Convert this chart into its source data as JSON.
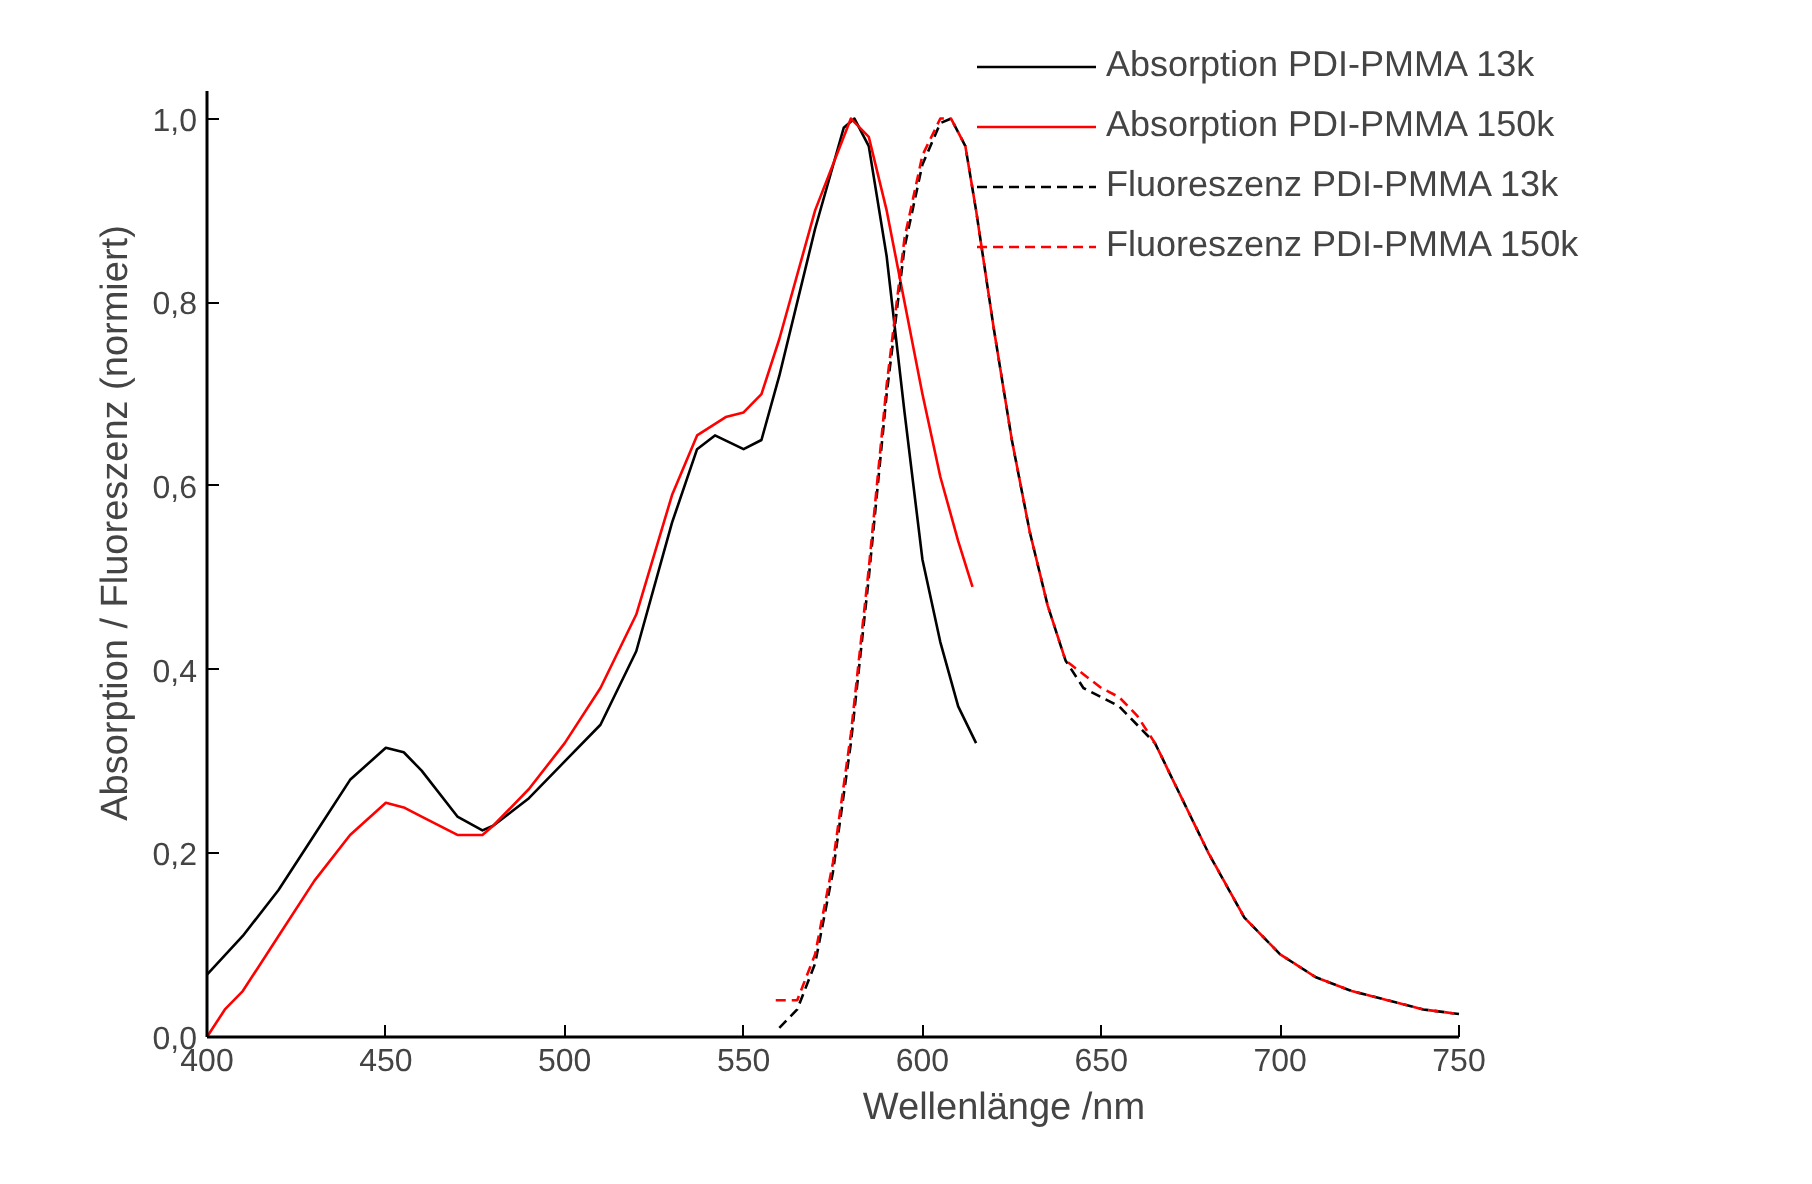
{
  "chart_data": {
    "type": "line",
    "xlabel": "Wellenlänge /nm",
    "ylabel": "Absorption / Fluoreszenz (normiert)",
    "xlim": [
      400,
      750
    ],
    "xticks": [
      400,
      450,
      500,
      550,
      600,
      650,
      700,
      750
    ],
    "ylim": [
      0,
      1.03
    ],
    "yticks": [
      {
        "value": 0,
        "label": "0,0"
      },
      {
        "value": 0.2,
        "label": "0,2"
      },
      {
        "value": 0.4,
        "label": "0,4"
      },
      {
        "value": 0.6,
        "label": "0,6"
      },
      {
        "value": 0.8,
        "label": "0,8"
      },
      {
        "value": 1.0,
        "label": "1,0"
      }
    ],
    "grid": false,
    "legend": "top right",
    "series": [
      {
        "name": "Absorption PDI-PMMA 13k",
        "color": "#000000",
        "line_style": "solid",
        "x": [
          400,
          410,
          420,
          430,
          440,
          450,
          455,
          460,
          470,
          477,
          480,
          490,
          500,
          510,
          520,
          530,
          537,
          542,
          550,
          555,
          560,
          570,
          578,
          581,
          585,
          590,
          595,
          600,
          605,
          610,
          615
        ],
        "values": [
          0.068,
          0.11,
          0.16,
          0.22,
          0.28,
          0.315,
          0.31,
          0.29,
          0.24,
          0.225,
          0.23,
          0.26,
          0.3,
          0.34,
          0.42,
          0.56,
          0.64,
          0.655,
          0.64,
          0.65,
          0.72,
          0.88,
          0.99,
          1.0,
          0.97,
          0.85,
          0.68,
          0.52,
          0.43,
          0.36,
          0.32
        ]
      },
      {
        "name": "Absorption PDI-PMMA 150k",
        "color": "#ff0000",
        "line_style": "solid",
        "x": [
          400,
          405,
          410,
          420,
          430,
          440,
          450,
          455,
          460,
          470,
          477,
          480,
          490,
          500,
          510,
          520,
          530,
          537,
          545,
          550,
          555,
          560,
          570,
          580,
          585,
          590,
          595,
          600,
          605,
          610,
          614
        ],
        "values": [
          0.0,
          0.03,
          0.05,
          0.11,
          0.17,
          0.22,
          0.255,
          0.25,
          0.24,
          0.22,
          0.22,
          0.23,
          0.27,
          0.32,
          0.38,
          0.46,
          0.59,
          0.655,
          0.675,
          0.68,
          0.7,
          0.76,
          0.9,
          1.0,
          0.98,
          0.9,
          0.8,
          0.7,
          0.61,
          0.54,
          0.49
        ]
      },
      {
        "name": "Fluoreszenz PDI-PMMA 13k",
        "color": "#000000",
        "line_style": "dashed",
        "x": [
          560,
          565,
          570,
          575,
          580,
          585,
          590,
          595,
          600,
          605,
          608,
          612,
          615,
          620,
          625,
          630,
          635,
          640,
          645,
          650,
          655,
          660,
          665,
          670,
          680,
          690,
          700,
          710,
          720,
          730,
          740,
          750
        ],
        "values": [
          0.01,
          0.03,
          0.08,
          0.18,
          0.32,
          0.5,
          0.7,
          0.86,
          0.95,
          0.995,
          1.0,
          0.97,
          0.9,
          0.77,
          0.65,
          0.55,
          0.47,
          0.41,
          0.38,
          0.37,
          0.36,
          0.34,
          0.32,
          0.28,
          0.2,
          0.13,
          0.09,
          0.065,
          0.05,
          0.04,
          0.03,
          0.025
        ]
      },
      {
        "name": "Fluoreszenz PDI-PMMA 150k",
        "color": "#ff0000",
        "line_style": "dashed",
        "x": [
          559,
          565,
          570,
          575,
          580,
          585,
          590,
          595,
          600,
          605,
          608,
          612,
          615,
          620,
          625,
          630,
          635,
          640,
          645,
          650,
          655,
          660,
          665,
          670,
          680,
          690,
          700,
          710,
          720,
          730,
          740,
          750
        ],
        "values": [
          0.04,
          0.04,
          0.09,
          0.19,
          0.33,
          0.51,
          0.71,
          0.87,
          0.96,
          1.0,
          1.0,
          0.97,
          0.9,
          0.77,
          0.65,
          0.55,
          0.47,
          0.41,
          0.395,
          0.38,
          0.37,
          0.35,
          0.32,
          0.28,
          0.2,
          0.13,
          0.09,
          0.065,
          0.05,
          0.04,
          0.03,
          0.025
        ]
      }
    ]
  }
}
